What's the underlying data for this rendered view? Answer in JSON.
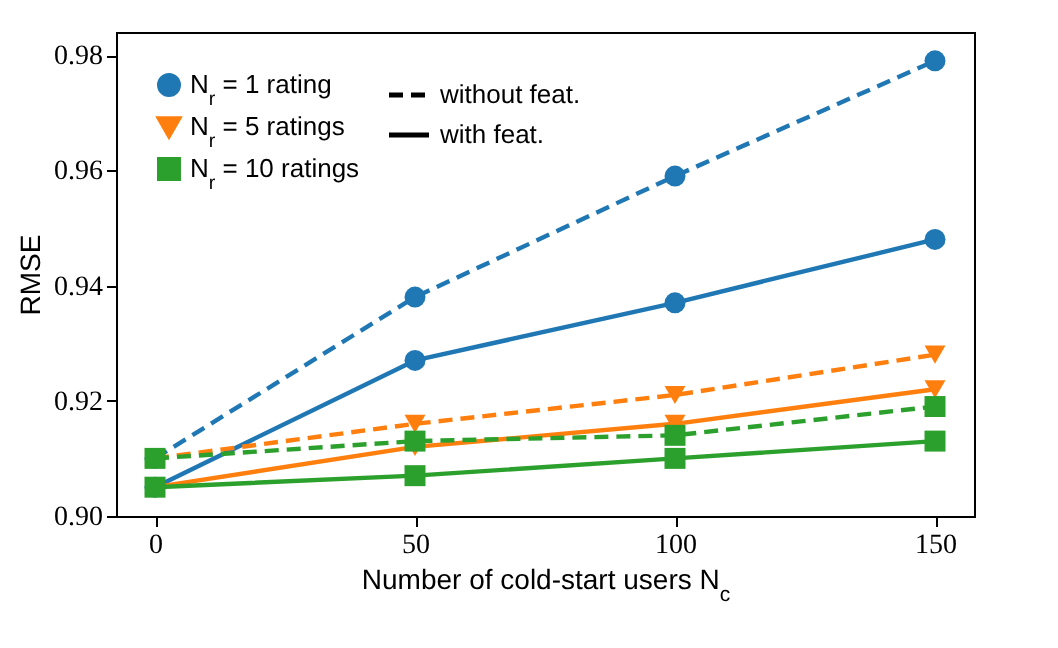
{
  "chart_data": {
    "type": "line",
    "xlabel": "Number of cold-start users N$_{c}$",
    "ylabel": "RMSE",
    "x": [
      0,
      50,
      100,
      150
    ],
    "series": [
      {
        "name": "N$_{r}$ = 1 rating",
        "color": "#1f77b4",
        "marker": "circle",
        "line_style": "dashed",
        "values": [
          0.91,
          0.938,
          0.959,
          0.979
        ]
      },
      {
        "color": "#1f77b4",
        "marker": "circle",
        "line_style": "solid",
        "values": [
          0.905,
          0.927,
          0.937,
          0.948
        ]
      },
      {
        "name": "N$_{r}$ = 5 ratings",
        "color": "#ff7f0e",
        "marker": "triangle",
        "line_style": "dashed",
        "values": [
          0.91,
          0.916,
          0.921,
          0.928
        ]
      },
      {
        "color": "#ff7f0e",
        "marker": "triangle",
        "line_style": "solid",
        "values": [
          0.905,
          0.912,
          0.916,
          0.922
        ]
      },
      {
        "name": "N$_{r}$ = 10 ratings",
        "color": "#2ca02c",
        "marker": "square",
        "line_style": "dashed",
        "values": [
          0.91,
          0.913,
          0.914,
          0.919
        ]
      },
      {
        "color": "#2ca02c",
        "marker": "square",
        "line_style": "solid",
        "values": [
          0.905,
          0.907,
          0.91,
          0.913
        ]
      }
    ],
    "annotations": [
      "without feat.",
      "with feat."
    ],
    "xlim": [
      -7.5,
      157.5
    ],
    "xticks": [
      0,
      50,
      100,
      150
    ],
    "ylim": [
      0.9,
      0.984
    ],
    "yticks": [
      {
        "value": 0.9,
        "label": "0.90"
      },
      0.92,
      0.94,
      0.96,
      0.98
    ],
    "grid": false,
    "legend": "top left"
  }
}
